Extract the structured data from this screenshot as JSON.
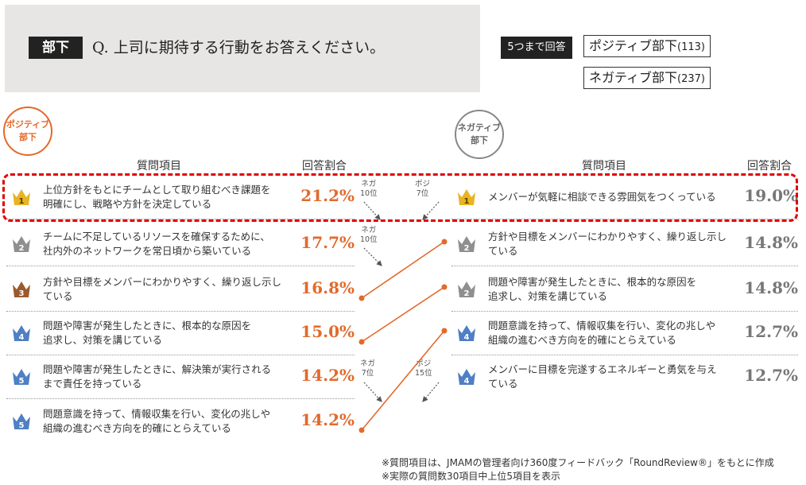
{
  "header": {
    "tag": "部下",
    "question": "Q. 上司に期待する行動をお答えください。",
    "badge": "5つまで回答",
    "legend": [
      {
        "label": "ポジティブ部下",
        "count": "(113)"
      },
      {
        "label": "ネガティブ部下",
        "count": "(237)"
      }
    ]
  },
  "chart_data": {
    "type": "table",
    "positive": {
      "circle_label": [
        "ポジティブ",
        "部下"
      ],
      "col_item": "質問項目",
      "col_rate": "回答割合",
      "rows": [
        {
          "rank": "1",
          "lines": [
            "上位方針をもとにチームとして取り組むべき課題を",
            "明確にし、戦略や方針を決定している"
          ],
          "value": "21.2%"
        },
        {
          "rank": "2",
          "lines": [
            "チームに不足しているリソースを確保するために、",
            "社内外のネットワークを常日頃から築いている"
          ],
          "value": "17.7%"
        },
        {
          "rank": "3",
          "lines": [
            "方針や目標をメンバーにわかりやすく、繰り返し示し",
            "ている"
          ],
          "value": "16.8%"
        },
        {
          "rank": "4",
          "lines": [
            "問題や障害が発生したときに、根本的な原因を",
            "追求し、対策を講じている"
          ],
          "value": "15.0%"
        },
        {
          "rank": "5",
          "lines": [
            "問題や障害が発生したときに、解決策が実行される",
            "まで責任を持っている"
          ],
          "value": "14.2%"
        },
        {
          "rank": "5",
          "lines": [
            "問題意識を持って、情報収集を行い、変化の兆しや",
            "組織の進むべき方向を的確にとらえている"
          ],
          "value": "14.2%"
        }
      ]
    },
    "negative": {
      "circle_label": [
        "ネガティブ",
        "部下"
      ],
      "col_item": "質問項目",
      "col_rate": "回答割合",
      "rows": [
        {
          "rank": "1",
          "lines": [
            "メンバーが気軽に相談できる雰囲気をつくっている"
          ],
          "value": "19.0%"
        },
        {
          "rank": "2",
          "lines": [
            "方針や目標をメンバーにわかりやすく、繰り返し示し",
            "ている"
          ],
          "value": "14.8%"
        },
        {
          "rank": "2",
          "lines": [
            "問題や障害が発生したときに、根本的な原因を",
            "追求し、対策を講じている"
          ],
          "value": "14.8%"
        },
        {
          "rank": "4",
          "lines": [
            "問題意識を持って、情報収集を行い、変化の兆しや",
            "組織の進むべき方向を的確にとらえている"
          ],
          "value": "12.7%"
        },
        {
          "rank": "4",
          "lines": [
            "メンバーに目標を完遂するエネルギーと勇気を与え",
            "ている"
          ],
          "value": "12.7%"
        }
      ]
    },
    "cross_rank_notes": [
      {
        "lines": [
          "ネガ",
          "10位"
        ]
      },
      {
        "lines": [
          "ポジ",
          "7位"
        ]
      },
      {
        "lines": [
          "ネガ",
          "10位"
        ]
      },
      {
        "lines": [
          "ネガ",
          "7位"
        ]
      },
      {
        "lines": [
          "ポジ",
          "15位"
        ]
      }
    ],
    "links": [
      {
        "from_positive": 3,
        "to_negative": 2
      },
      {
        "from_positive": 4,
        "to_negative": 3
      },
      {
        "from_positive": 6,
        "to_negative": 4
      }
    ],
    "colors": {
      "positive": "#e26a2c",
      "negative": "#777777",
      "highlight": "#e00000"
    }
  },
  "footnotes": [
    "※質問項目は、JMAMの管理者向け360度フィードバック「RoundReview®」をもとに作成",
    "※実際の質問数30項目中上位5項目を表示"
  ]
}
